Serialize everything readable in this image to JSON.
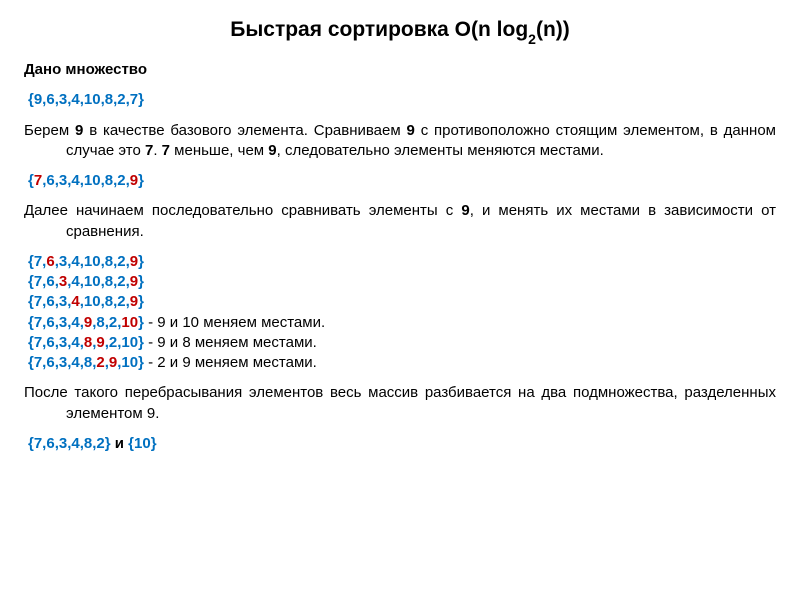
{
  "title_prefix": "Быстрая сортировка O(n log",
  "title_sub": "2",
  "title_suffix": "(n))",
  "given_label": "Дано множество",
  "initial_set_open": "{",
  "initial_set_values": "9,6,3,4,10,8,2,7",
  "initial_set_close": "}",
  "colors": {
    "blue": "#0070c0",
    "red": "#c00000",
    "text": "#000000",
    "bg": "#ffffff"
  },
  "para1_parts": [
    {
      "t": "Берем ",
      "b": false
    },
    {
      "t": "9",
      "b": true
    },
    {
      "t": " в качестве базового элемента. Сравниваем ",
      "b": false
    },
    {
      "t": "9",
      "b": true
    },
    {
      "t": " с противоположно стоящим элементом, в данном случае это ",
      "b": false
    },
    {
      "t": "7",
      "b": true
    },
    {
      "t": ". ",
      "b": false
    },
    {
      "t": "7",
      "b": true
    },
    {
      "t": " меньше, чем ",
      "b": false
    },
    {
      "t": "9",
      "b": true
    },
    {
      "t": ", следовательно элементы меняются местами.",
      "b": false
    }
  ],
  "swap1": {
    "open": "{",
    "r1": "7",
    "mid": ",6,3,4,10,8,2,",
    "r2": "9",
    "close": "}"
  },
  "para2_parts": [
    {
      "t": "Далее начинаем последовательно сравнивать элементы с ",
      "b": false
    },
    {
      "t": "9",
      "b": true
    },
    {
      "t": ", и менять их местами в зависимости от сравнения.",
      "b": false
    }
  ],
  "steps": [
    {
      "open": "{",
      "p1": "7,",
      "r1": "6",
      "p2": ",3,4,10,8,2,",
      "r2": "9",
      "p3": "",
      "close": "}",
      "note": ""
    },
    {
      "open": "{",
      "p1": "7,6,",
      "r1": "3",
      "p2": ",4,10,8,2,",
      "r2": "9",
      "p3": "",
      "close": "}",
      "note": ""
    },
    {
      "open": "{",
      "p1": "7,6,3,",
      "r1": "4",
      "p2": ",10,8,2,",
      "r2": "9",
      "p3": "",
      "close": "}",
      "note": ""
    },
    {
      "open": "{",
      "p1": "7,6,3,4,",
      "r1": "9",
      "p2": ",8,2,",
      "r2": "10",
      "p3": "",
      "close": "}",
      "note": " - 9 и 10 меняем местами."
    },
    {
      "open": "{",
      "p1": "7,6,3,4,",
      "r1": "8",
      "p2": ",",
      "r2": "9",
      "p3": ",2,10",
      "close": "}",
      "note": " - 9 и 8 меняем местами."
    },
    {
      "open": "{",
      "p1": "7,6,3,4,8,",
      "r1": "2",
      "p2": ",",
      "r2": "9",
      "p3": ",10",
      "close": "}",
      "note": " - 2 и 9 меняем местами."
    }
  ],
  "para3": "После такого перебрасывания элементов весь массив разбивается на два подмножества, разделенных элементом 9.",
  "result": {
    "open1": "{",
    "set1": "7,6,3,4,8,2",
    "close1": "}",
    "and": " и ",
    "open2": "{",
    "set2": "10",
    "close2": "}"
  },
  "font": {
    "title_size": 21,
    "body_size": 15
  }
}
